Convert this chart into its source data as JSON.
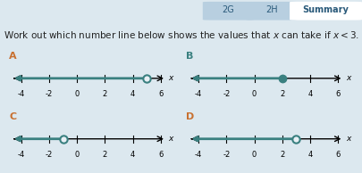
{
  "title_tab": "Summary",
  "question": "Work out which number line below shows the values that $x$ can take if $x < 3$.",
  "background_color": "#dce8ef",
  "panel_color": "#e8f0f5",
  "panels": [
    {
      "label": "A",
      "label_color": "#c87030",
      "xmin": -5,
      "xmax": 7.2,
      "ticks": [
        -4,
        -2,
        0,
        2,
        4,
        6
      ],
      "arrow_from": 5,
      "arrow_to": -5.2,
      "circle_at": 5,
      "filled": false,
      "line_color": "#3a8080",
      "circle_color": "#3a8080"
    },
    {
      "label": "B",
      "label_color": "#3a8080",
      "xmin": -5,
      "xmax": 7.2,
      "ticks": [
        -4,
        -2,
        0,
        2,
        4,
        6
      ],
      "arrow_from": 2,
      "arrow_to": -5.2,
      "circle_at": 2,
      "filled": true,
      "line_color": "#3a8080",
      "circle_color": "#3a8080"
    },
    {
      "label": "C",
      "label_color": "#c87030",
      "xmin": -5,
      "xmax": 7.2,
      "ticks": [
        -4,
        -2,
        0,
        2,
        4,
        6
      ],
      "arrow_from": -1,
      "arrow_to": -5.2,
      "circle_at": -1,
      "filled": false,
      "line_color": "#3a8080",
      "circle_color": "#3a8080"
    },
    {
      "label": "D",
      "label_color": "#c87030",
      "xmin": -5,
      "xmax": 7.2,
      "ticks": [
        -4,
        -2,
        0,
        2,
        4,
        6
      ],
      "arrow_from": 3,
      "arrow_to": -5.2,
      "circle_at": 3,
      "filled": false,
      "line_color": "#3a8080",
      "circle_color": "#3a8080"
    }
  ],
  "tab_labels": [
    "2G",
    "2H",
    "Summary"
  ],
  "tab_active": "Summary"
}
